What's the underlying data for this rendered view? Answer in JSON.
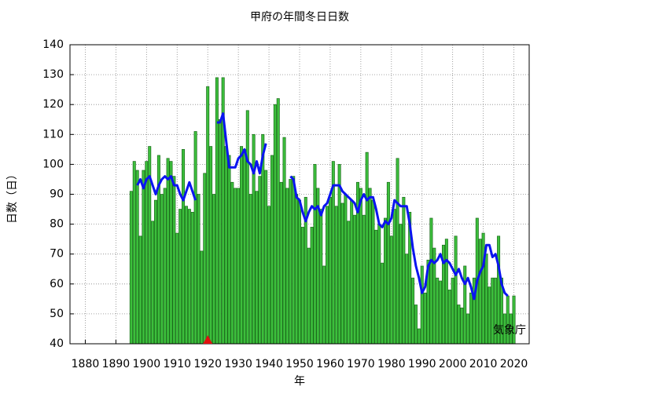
{
  "chart_data": {
    "type": "bar",
    "title": "甲府の年間冬日日数",
    "xlabel": "年",
    "ylabel": "日数（日）",
    "annotation": "気象庁",
    "x": [
      1895,
      1896,
      1897,
      1898,
      1899,
      1900,
      1901,
      1902,
      1903,
      1904,
      1905,
      1906,
      1907,
      1908,
      1909,
      1910,
      1911,
      1912,
      1913,
      1914,
      1915,
      1916,
      1917,
      1918,
      1919,
      1920,
      1921,
      1922,
      1923,
      1924,
      1925,
      1926,
      1927,
      1928,
      1929,
      1930,
      1931,
      1932,
      1933,
      1934,
      1935,
      1936,
      1937,
      1938,
      1939,
      1940,
      1941,
      1942,
      1943,
      1944,
      1945,
      1946,
      1947,
      1948,
      1949,
      1950,
      1951,
      1952,
      1953,
      1954,
      1955,
      1956,
      1957,
      1958,
      1959,
      1960,
      1961,
      1962,
      1963,
      1964,
      1965,
      1966,
      1967,
      1968,
      1969,
      1970,
      1971,
      1972,
      1973,
      1974,
      1975,
      1976,
      1977,
      1978,
      1979,
      1980,
      1981,
      1982,
      1983,
      1984,
      1985,
      1986,
      1987,
      1988,
      1989,
      1990,
      1991,
      1992,
      1993,
      1994,
      1995,
      1996,
      1997,
      1998,
      1999,
      2000,
      2001,
      2002,
      2003,
      2004,
      2005,
      2006,
      2007,
      2008,
      2009,
      2010,
      2011,
      2012,
      2013,
      2014,
      2015,
      2016,
      2017,
      2018,
      2019,
      2020
    ],
    "values": [
      91,
      101,
      98,
      76,
      98,
      101,
      106,
      81,
      88,
      103,
      90,
      92,
      102,
      101,
      96,
      77,
      85,
      105,
      86,
      85,
      84,
      111,
      90,
      71,
      97,
      126,
      106,
      90,
      129,
      115,
      129,
      106,
      103,
      94,
      92,
      92,
      106,
      105,
      118,
      90,
      110,
      91,
      96,
      110,
      98,
      86,
      103,
      120,
      122,
      94,
      109,
      92,
      95,
      96,
      90,
      88,
      79,
      89,
      72,
      79,
      100,
      92,
      85,
      66,
      86,
      89,
      101,
      86,
      100,
      87,
      90,
      81,
      88,
      83,
      94,
      92,
      83,
      104,
      92,
      88,
      78,
      80,
      67,
      82,
      94,
      76,
      85,
      102,
      80,
      89,
      70,
      84,
      62,
      53,
      45,
      66,
      57,
      68,
      82,
      72,
      62,
      61,
      73,
      75,
      58,
      62,
      76,
      53,
      52,
      66,
      50,
      57,
      62,
      82,
      75,
      77,
      70,
      59,
      62,
      62,
      76,
      62,
      50,
      56,
      50,
      56
    ],
    "color": "#3cbf3c",
    "line": {
      "color": "#0a14f0",
      "x": [
        1897,
        1898,
        1899,
        1900,
        1901,
        1902,
        1903,
        1904,
        1905,
        1906,
        1907,
        1908,
        1909,
        1910,
        1911,
        1912,
        1913,
        1914,
        1915,
        1916,
        1917,
        1923,
        1924,
        1925,
        1926,
        1927,
        1928,
        1929,
        1930,
        1931,
        1932,
        1933,
        1934,
        1935,
        1936,
        1937,
        1938,
        1939,
        1940,
        1947,
        1948,
        1949,
        1950,
        1951,
        1952,
        1953,
        1954,
        1955,
        1956,
        1957,
        1958,
        1959,
        1960,
        1961,
        1962,
        1963,
        1964,
        1965,
        1966,
        1967,
        1968,
        1969,
        1970,
        1971,
        1972,
        1973,
        1974,
        1975,
        1976,
        1977,
        1978,
        1979,
        1980,
        1981,
        1982,
        1983,
        1984,
        1985,
        1986,
        1987,
        1988,
        1989,
        1990,
        1991,
        1992,
        1993,
        1994,
        1995,
        1996,
        1997,
        1998,
        1999,
        2000,
        2001,
        2002,
        2003,
        2004,
        2005,
        2006,
        2007,
        2008,
        2009,
        2010,
        2011,
        2012,
        2013,
        2014,
        2015,
        2016,
        2017,
        2018
      ],
      "values": [
        93,
        95,
        92,
        95,
        96,
        93,
        90,
        93,
        95,
        96,
        95,
        96,
        93,
        93,
        90,
        88,
        91,
        94,
        91,
        88,
        null,
        114,
        114,
        117,
        108,
        99,
        99,
        99,
        102,
        103,
        105,
        101,
        100,
        97,
        101,
        97,
        103,
        107,
        null,
        96,
        95,
        89,
        88,
        84,
        81,
        84,
        86,
        85,
        86,
        83,
        86,
        87,
        90,
        93,
        93,
        93,
        91,
        90,
        89,
        88,
        87,
        84,
        88,
        90,
        88,
        89,
        89,
        85,
        80,
        79,
        81,
        80,
        82,
        88,
        87,
        86,
        86,
        86,
        80,
        72,
        66,
        62,
        57,
        59,
        66,
        68,
        67,
        68,
        70,
        67,
        68,
        67,
        65,
        63,
        65,
        62,
        60,
        62,
        59,
        55,
        61,
        64,
        66,
        73,
        73,
        69,
        70,
        66,
        60,
        57,
        56
      ]
    },
    "marker": {
      "x": 1920,
      "color": "#e01010"
    },
    "xlim": [
      1875,
      2025
    ],
    "ylim": [
      40,
      140
    ],
    "xticks": [
      1880,
      1890,
      1900,
      1910,
      1920,
      1930,
      1940,
      1950,
      1960,
      1970,
      1980,
      1990,
      2000,
      2010,
      2020
    ],
    "yticks": [
      40,
      50,
      60,
      70,
      80,
      90,
      100,
      110,
      120,
      130,
      140
    ],
    "grid": true
  }
}
